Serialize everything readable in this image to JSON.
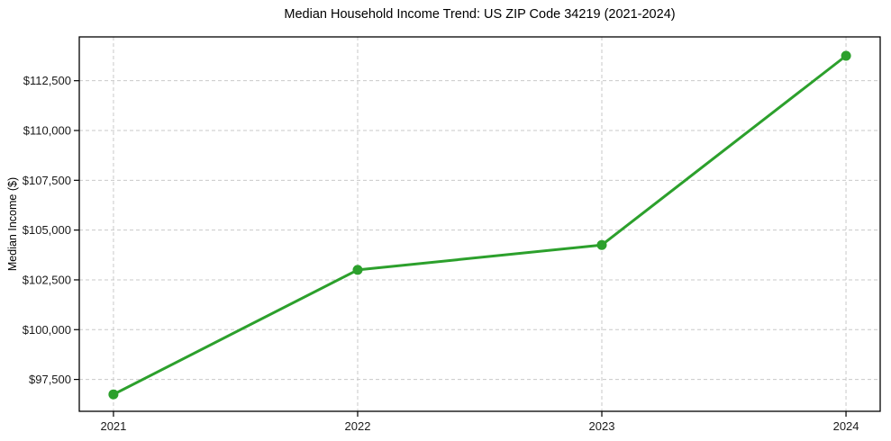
{
  "chart_data": {
    "type": "line",
    "title": "Median Household Income Trend: US ZIP Code 34219 (2021-2024)",
    "xlabel": "",
    "ylabel": "Median Income ($)",
    "x": [
      2021,
      2022,
      2023,
      2024
    ],
    "x_tick_labels": [
      "2021",
      "2022",
      "2023",
      "2024"
    ],
    "series": [
      {
        "name": "Median household income",
        "values": [
          96750,
          103000,
          104250,
          113750
        ]
      }
    ],
    "y_ticks": [
      97500,
      100000,
      102500,
      105000,
      107500,
      110000,
      112500
    ],
    "y_tick_labels": [
      "$97,500",
      "$100,000",
      "$102,500",
      "$105,000",
      "$107,500",
      "$110,000",
      "$112,500"
    ],
    "xlim": [
      2020.86,
      2024.14
    ],
    "ylim": [
      95900,
      114700
    ],
    "grid": true,
    "grid_style": "dashed",
    "legend_position": "none",
    "marker": "circle"
  },
  "colors": {
    "line": "#2ca02c",
    "marker": "#2ca02c",
    "grid": "#c9c9c9",
    "spine": "#000000",
    "tick_text": "#1a1a1a",
    "background": "#ffffff"
  }
}
